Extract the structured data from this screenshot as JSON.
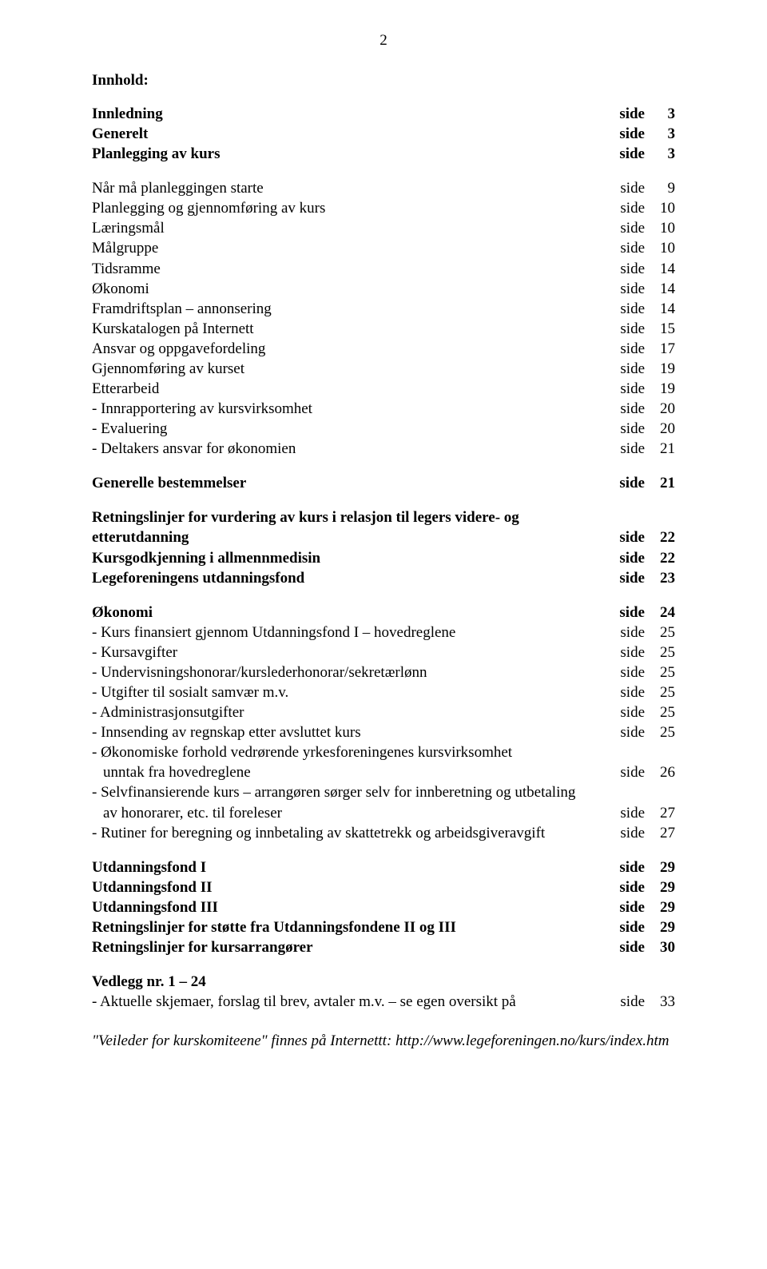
{
  "page_number": "2",
  "heading": "Innhold:",
  "side_word": "side",
  "colors": {
    "background": "#ffffff",
    "text": "#000000"
  },
  "typography": {
    "font_family": "Times New Roman",
    "body_size_pt": 14,
    "line_height": 1.32
  },
  "toc": [
    {
      "label": "Innledning",
      "page": "3",
      "bold": true
    },
    {
      "label": "Generelt",
      "page": "3",
      "bold": true
    },
    {
      "label": "Planlegging av kurs",
      "page": "3",
      "bold": true
    },
    {
      "gap": "md"
    },
    {
      "label": "Når må planleggingen starte",
      "page": "9",
      "bold": false
    },
    {
      "label": "Planlegging og gjennomføring av kurs",
      "page": "10",
      "bold": false
    },
    {
      "label": "Læringsmål",
      "page": "10",
      "bold": false
    },
    {
      "label": "Målgruppe",
      "page": "10",
      "bold": false
    },
    {
      "label": "Tidsramme",
      "page": "14",
      "bold": false
    },
    {
      "label": "Økonomi",
      "page": "14",
      "bold": false
    },
    {
      "label": "Framdriftsplan – annonsering",
      "page": "14",
      "bold": false
    },
    {
      "label": "Kurskatalogen på Internett",
      "page": "15",
      "bold": false
    },
    {
      "label": "Ansvar og oppgavefordeling",
      "page": "17",
      "bold": false
    },
    {
      "label": "Gjennomføring av kurset",
      "page": "19",
      "bold": false
    },
    {
      "label": "Etterarbeid",
      "page": "19",
      "bold": false
    },
    {
      "label": "- Innrapportering av kursvirksomhet",
      "page": "20",
      "bold": false
    },
    {
      "label": "- Evaluering",
      "page": "20",
      "bold": false
    },
    {
      "label": "- Deltakers ansvar for økonomien",
      "page": "21",
      "bold": false
    },
    {
      "gap": "md"
    },
    {
      "label": "Generelle bestemmelser",
      "page": "21",
      "bold": true
    },
    {
      "gap": "md"
    },
    {
      "label": "Retningslinjer for vurdering av kurs i relasjon til legers videre- og",
      "bold": true,
      "nowrap_page": true
    },
    {
      "label": "etterutdanning",
      "page": "22",
      "bold": true
    },
    {
      "label": "Kursgodkjenning i allmennmedisin",
      "page": "22",
      "bold": true
    },
    {
      "label": "Legeforeningens utdanningsfond",
      "page": "23",
      "bold": true
    },
    {
      "gap": "md"
    },
    {
      "label": "Økonomi",
      "page": "24",
      "bold": true
    },
    {
      "label": "- Kurs finansiert gjennom Utdanningsfond I – hovedreglene",
      "page": "25",
      "bold": false
    },
    {
      "label": "- Kursavgifter",
      "page": "25",
      "bold": false
    },
    {
      "label": "- Undervisningshonorar/kurslederhonorar/sekretærlønn",
      "page": "25",
      "bold": false
    },
    {
      "label": "- Utgifter til sosialt samvær m.v.",
      "page": "25",
      "bold": false
    },
    {
      "label": "- Administrasjonsutgifter",
      "page": "25",
      "bold": false
    },
    {
      "label": "- Innsending av regnskap etter avsluttet kurs",
      "page": "25",
      "bold": false
    },
    {
      "label": "- Økonomiske forhold vedrørende yrkesforeningenes kursvirksomhet",
      "bold": false,
      "nowrap_page": true
    },
    {
      "label": "unntak fra hovedreglene",
      "page": "26",
      "bold": false,
      "indent": true
    },
    {
      "label": "- Selvfinansierende kurs – arrangøren sørger selv for innberetning og utbetaling",
      "bold": false,
      "nowrap_page": true
    },
    {
      "label": "av honorarer, etc. til foreleser",
      "page": "27",
      "bold": false,
      "indent": true
    },
    {
      "label": "- Rutiner for beregning og innbetaling av skattetrekk og arbeidsgiveravgift",
      "page": "27",
      "bold": false
    },
    {
      "gap": "md"
    },
    {
      "label": "Utdanningsfond I",
      "page": "29",
      "bold": true
    },
    {
      "label": "Utdanningsfond II",
      "page": "29",
      "bold": true
    },
    {
      "label": "Utdanningsfond III",
      "page": "29",
      "bold": true
    },
    {
      "label": "Retningslinjer for støtte fra Utdanningsfondene II og III",
      "page": "29",
      "bold": true
    },
    {
      "label": "Retningslinjer for kursarrangører",
      "page": "30",
      "bold": true
    },
    {
      "gap": "md"
    },
    {
      "label": "Vedlegg nr. 1 – 24",
      "bold": true,
      "nowrap_page": true
    },
    {
      "label": "- Aktuelle skjemaer, forslag til brev, avtaler m.v. – se egen oversikt på",
      "page": "33",
      "bold": false
    }
  ],
  "footer": "\"Veileder for kurskomiteene\" finnes på Internettt: http://www.legeforeningen.no/kurs/index.htm"
}
